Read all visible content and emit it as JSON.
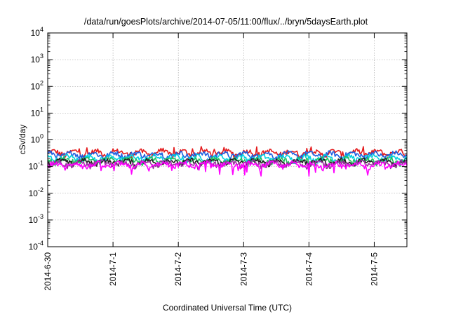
{
  "chart_data": {
    "type": "line",
    "title": "/data/run/goesPlots/archive/2014-07-05/11:00/flux/../bryn/5daysEarth.plot",
    "xlabel": "Coordinated Universal Time (UTC)",
    "ylabel": "cSv/day",
    "y_scale": "log",
    "ylim": [
      0.0001,
      10000
    ],
    "y_ticks": [
      {
        "base": "10",
        "exp": "-4",
        "value": 0.0001
      },
      {
        "base": "10",
        "exp": "-3",
        "value": 0.001
      },
      {
        "base": "10",
        "exp": "-2",
        "value": 0.01
      },
      {
        "base": "10",
        "exp": "-1",
        "value": 0.1
      },
      {
        "base": "10",
        "exp": "0",
        "value": 1
      },
      {
        "base": "10",
        "exp": "1",
        "value": 10
      },
      {
        "base": "10",
        "exp": "2",
        "value": 100
      },
      {
        "base": "10",
        "exp": "3",
        "value": 1000
      },
      {
        "base": "10",
        "exp": "4",
        "value": 10000
      }
    ],
    "x_ticks": [
      "2014-6-30",
      "2014-7-1",
      "2014-7-2",
      "2014-7-3",
      "2014-7-4",
      "2014-7-5"
    ],
    "xlim_days": [
      0,
      5.5
    ],
    "grid": true,
    "series": [
      {
        "color": "#e41a1c",
        "level": 0.33
      },
      {
        "color": "#1f5fe0",
        "level": 0.28
      },
      {
        "color": "#00d0e0",
        "level": 0.21
      },
      {
        "color": "#20c060",
        "level": 0.17
      },
      {
        "color": "#202020",
        "level": 0.15
      },
      {
        "color": "#9b2fa0",
        "level": 0.13
      },
      {
        "color": "#ff00ff",
        "level": 0.115
      }
    ]
  }
}
